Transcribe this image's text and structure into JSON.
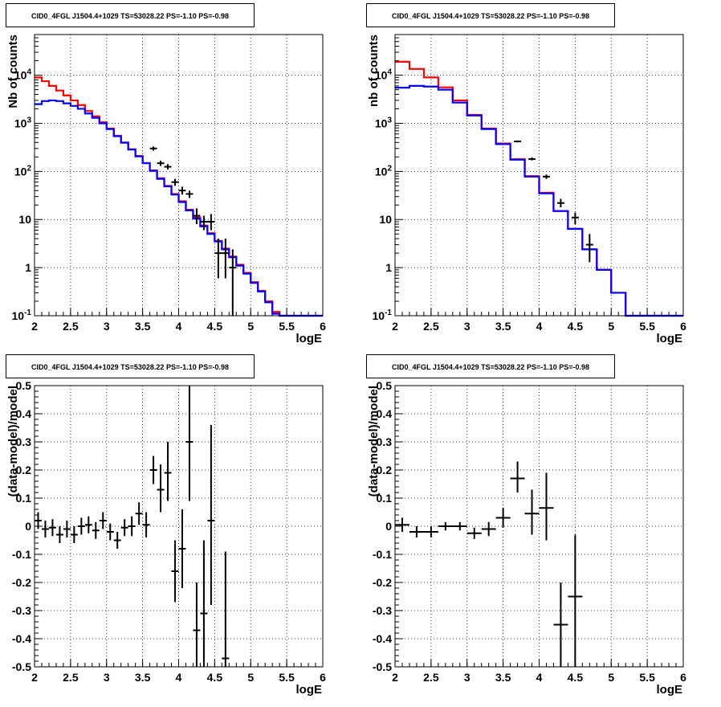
{
  "chart_data": [
    {
      "id": "top-left",
      "type": "histogram",
      "title": "CID0_4FGL J1504.4+1029 TS=53028.22 PS=-1.10 PS=-0.98",
      "xlabel": "logE",
      "ylabel": "Nb of counts",
      "xlim": [
        2,
        6
      ],
      "ylim": [
        0.1,
        70000
      ],
      "ylog": true,
      "grid": true,
      "xticks": [
        2,
        2.5,
        3,
        3.5,
        4,
        4.5,
        5,
        5.5,
        6
      ],
      "xtick_labels": [
        "2",
        "2.5",
        "3",
        "3.5",
        "4",
        "4.5",
        "5",
        "5.5",
        "6"
      ],
      "yticks": [
        0.1,
        1,
        10,
        100,
        1000,
        10000
      ],
      "ytick_labels": [
        "10^-1",
        "1",
        "10",
        "10^2",
        "10^3",
        "10^4"
      ],
      "bin_edges": [
        2.0,
        2.1,
        2.2,
        2.3,
        2.4,
        2.5,
        2.6,
        2.7,
        2.8,
        2.9,
        3.0,
        3.1,
        3.2,
        3.3,
        3.4,
        3.5,
        3.6,
        3.7,
        3.8,
        3.9,
        4.0,
        4.1,
        4.2,
        4.3,
        4.4,
        4.5,
        4.6,
        4.7,
        4.8,
        4.9,
        5.0,
        5.1,
        5.2,
        5.3,
        5.4,
        5.5,
        5.6,
        5.7,
        5.8,
        5.9,
        6.0
      ],
      "series": [
        {
          "color": "#ff0000",
          "values": [
            9000,
            7500,
            6000,
            4800,
            3800,
            3000,
            2400,
            1800,
            1400,
            1050,
            780,
            550,
            400,
            290,
            210,
            150,
            105,
            72,
            50,
            34,
            24,
            16,
            11,
            7.5,
            5.2,
            3.6,
            2.5,
            1.7,
            1.15,
            0.78,
            0.5,
            0.33,
            0.2,
            0.12,
            0.1,
            0.1,
            0.1,
            0.1,
            0.1,
            0.1
          ]
        },
        {
          "color": "#0000ff",
          "values": [
            2500,
            2900,
            3000,
            2900,
            2600,
            2300,
            2000,
            1600,
            1300,
            1000,
            760,
            540,
            395,
            285,
            205,
            148,
            103,
            70,
            49,
            33,
            23,
            15.5,
            10.5,
            7.2,
            5.0,
            3.5,
            2.4,
            1.65,
            1.1,
            0.75,
            0.48,
            0.32,
            0.19,
            0.11,
            0.1,
            0.1,
            0.1,
            0.1,
            0.1,
            0.1
          ]
        }
      ],
      "points": [
        {
          "x": 3.65,
          "y": 300,
          "ylo": 270,
          "yhi": 330
        },
        {
          "x": 3.75,
          "y": 148,
          "ylo": 130,
          "yhi": 168
        },
        {
          "x": 3.85,
          "y": 125,
          "ylo": 110,
          "yhi": 142
        },
        {
          "x": 3.95,
          "y": 60,
          "ylo": 50,
          "yhi": 70
        },
        {
          "x": 4.05,
          "y": 40,
          "ylo": 33,
          "yhi": 48
        },
        {
          "x": 4.15,
          "y": 34,
          "ylo": 28,
          "yhi": 40
        },
        {
          "x": 4.25,
          "y": 12,
          "ylo": 8,
          "yhi": 17
        },
        {
          "x": 4.35,
          "y": 9,
          "ylo": 6,
          "yhi": 12
        },
        {
          "x": 4.45,
          "y": 9,
          "ylo": 6,
          "yhi": 13
        },
        {
          "x": 4.55,
          "y": 2,
          "ylo": 0.6,
          "yhi": 4
        },
        {
          "x": 4.65,
          "y": 2,
          "ylo": 0.6,
          "yhi": 4
        },
        {
          "x": 4.75,
          "y": 1,
          "ylo": 0.1,
          "yhi": 2.4
        }
      ]
    },
    {
      "id": "top-right",
      "type": "histogram",
      "title": "CID0_4FGL J1504.4+1029 TS=53028.22 PS=-1.10 PS=-0.98",
      "xlabel": "logE",
      "ylabel": "nb of counts",
      "xlim": [
        2,
        6
      ],
      "ylim": [
        0.1,
        70000
      ],
      "ylog": true,
      "grid": true,
      "xticks": [
        2,
        2.5,
        3,
        3.5,
        4,
        4.5,
        5,
        5.5,
        6
      ],
      "xtick_labels": [
        "2",
        "2.5",
        "3",
        "3.5",
        "4",
        "4.5",
        "5",
        "5.5",
        "6"
      ],
      "yticks": [
        0.1,
        1,
        10,
        100,
        1000,
        10000
      ],
      "ytick_labels": [
        "10^-1",
        "1",
        "10",
        "10^2",
        "10^3",
        "10^4"
      ],
      "bin_edges": [
        2.0,
        2.2,
        2.4,
        2.6,
        2.8,
        3.0,
        3.2,
        3.4,
        3.6,
        3.8,
        4.0,
        4.2,
        4.4,
        4.6,
        4.8,
        5.0,
        5.2,
        5.4,
        5.6,
        5.8,
        6.0
      ],
      "series": [
        {
          "color": "#ff0000",
          "values": [
            19000,
            13500,
            9000,
            5600,
            3000,
            1500,
            780,
            380,
            180,
            80,
            36,
            15,
            6.4,
            2.4,
            0.9,
            0.3,
            0.1,
            0.1,
            0.1,
            0.1
          ]
        },
        {
          "color": "#0000ff",
          "values": [
            5500,
            6000,
            5800,
            5000,
            2700,
            1450,
            760,
            370,
            175,
            78,
            35,
            15,
            6.4,
            2.4,
            0.9,
            0.3,
            0.1,
            0.1,
            0.1,
            0.1
          ]
        }
      ],
      "points": [
        {
          "x": 3.7,
          "y": 420,
          "ylo": 400,
          "yhi": 440
        },
        {
          "x": 3.9,
          "y": 180,
          "ylo": 170,
          "yhi": 195
        },
        {
          "x": 4.1,
          "y": 78,
          "ylo": 70,
          "yhi": 86
        },
        {
          "x": 4.3,
          "y": 22,
          "ylo": 18,
          "yhi": 27
        },
        {
          "x": 4.5,
          "y": 11,
          "ylo": 8,
          "yhi": 14
        },
        {
          "x": 4.7,
          "y": 3,
          "ylo": 1.3,
          "yhi": 5
        }
      ]
    },
    {
      "id": "bottom-left",
      "type": "scatter",
      "title": "CID0_4FGL J1504.4+1029 TS=53028.22 PS=-1.10 PS=-0.98",
      "xlabel": "logE",
      "ylabel": "(data-model)/model",
      "xlim": [
        2,
        6
      ],
      "ylim": [
        -0.5,
        0.5
      ],
      "grid": true,
      "xticks": [
        2,
        2.5,
        3,
        3.5,
        4,
        4.5,
        5,
        5.5,
        6
      ],
      "xtick_labels": [
        "2",
        "2.5",
        "3",
        "3.5",
        "4",
        "4.5",
        "5",
        "5.5",
        "6"
      ],
      "yticks": [
        -0.5,
        -0.4,
        -0.3,
        -0.2,
        -0.1,
        0,
        0.1,
        0.2,
        0.3,
        0.4,
        0.5
      ],
      "ytick_labels": [
        "-0.5",
        "-0.4",
        "-0.3",
        "-0.2",
        "-0.1",
        "0",
        "0.1",
        "0.2",
        "0.3",
        "0.4",
        "0.5"
      ],
      "xerr": 0.05,
      "points": [
        {
          "x": 2.05,
          "y": 0.02,
          "ylo": -0.01,
          "yhi": 0.05
        },
        {
          "x": 2.15,
          "y": -0.01,
          "ylo": -0.04,
          "yhi": 0.02
        },
        {
          "x": 2.25,
          "y": -0.005,
          "ylo": -0.035,
          "yhi": 0.025
        },
        {
          "x": 2.35,
          "y": -0.03,
          "ylo": -0.06,
          "yhi": 0.0
        },
        {
          "x": 2.45,
          "y": -0.01,
          "ylo": -0.04,
          "yhi": 0.02
        },
        {
          "x": 2.55,
          "y": -0.03,
          "ylo": -0.06,
          "yhi": 0.0
        },
        {
          "x": 2.65,
          "y": 0.0,
          "ylo": -0.03,
          "yhi": 0.03
        },
        {
          "x": 2.75,
          "y": 0.005,
          "ylo": -0.025,
          "yhi": 0.035
        },
        {
          "x": 2.85,
          "y": -0.015,
          "ylo": -0.045,
          "yhi": 0.015
        },
        {
          "x": 2.95,
          "y": 0.02,
          "ylo": -0.01,
          "yhi": 0.05
        },
        {
          "x": 3.05,
          "y": -0.02,
          "ylo": -0.05,
          "yhi": 0.01
        },
        {
          "x": 3.15,
          "y": -0.05,
          "ylo": -0.08,
          "yhi": -0.02
        },
        {
          "x": 3.25,
          "y": -0.005,
          "ylo": -0.035,
          "yhi": 0.025
        },
        {
          "x": 3.35,
          "y": 0.0,
          "ylo": -0.035,
          "yhi": 0.035
        },
        {
          "x": 3.45,
          "y": 0.045,
          "ylo": 0.005,
          "yhi": 0.085
        },
        {
          "x": 3.55,
          "y": 0.005,
          "ylo": -0.04,
          "yhi": 0.05
        },
        {
          "x": 3.65,
          "y": 0.2,
          "ylo": 0.15,
          "yhi": 0.25
        },
        {
          "x": 3.75,
          "y": 0.13,
          "ylo": 0.05,
          "yhi": 0.22
        },
        {
          "x": 3.85,
          "y": 0.19,
          "ylo": 0.09,
          "yhi": 0.3
        },
        {
          "x": 3.95,
          "y": -0.16,
          "ylo": -0.27,
          "yhi": -0.05
        },
        {
          "x": 4.05,
          "y": -0.08,
          "ylo": -0.22,
          "yhi": 0.06
        },
        {
          "x": 4.15,
          "y": 0.3,
          "ylo": 0.09,
          "yhi": 0.5
        },
        {
          "x": 4.25,
          "y": -0.37,
          "ylo": -0.5,
          "yhi": -0.2
        },
        {
          "x": 4.35,
          "y": -0.31,
          "ylo": -0.5,
          "yhi": -0.05
        },
        {
          "x": 4.45,
          "y": 0.02,
          "ylo": -0.28,
          "yhi": 0.36
        },
        {
          "x": 4.65,
          "y": -0.47,
          "ylo": -0.5,
          "yhi": -0.09
        }
      ]
    },
    {
      "id": "bottom-right",
      "type": "scatter",
      "title": "CID0_4FGL J1504.4+1029 TS=53028.22 PS=-1.10 PS=-0.98",
      "xlabel": "logE",
      "ylabel": "(data-model)/model",
      "xlim": [
        2,
        6
      ],
      "ylim": [
        -0.5,
        0.5
      ],
      "grid": true,
      "xticks": [
        2,
        2.5,
        3,
        3.5,
        4,
        4.5,
        5,
        5.5,
        6
      ],
      "xtick_labels": [
        "2",
        "2.5",
        "3",
        "3.5",
        "4",
        "4.5",
        "5",
        "5.5",
        "6"
      ],
      "yticks": [
        -0.5,
        -0.4,
        -0.3,
        -0.2,
        -0.1,
        0,
        0.1,
        0.2,
        0.3,
        0.4,
        0.5
      ],
      "ytick_labels": [
        "-0.5",
        "-0.4",
        "-0.3",
        "-0.2",
        "-0.1",
        "0",
        "0.1",
        "0.2",
        "0.3",
        "0.4",
        "0.5"
      ],
      "xerr": 0.1,
      "points": [
        {
          "x": 2.1,
          "y": 0.005,
          "ylo": -0.02,
          "yhi": 0.03
        },
        {
          "x": 2.3,
          "y": -0.02,
          "ylo": -0.04,
          "yhi": 0.0
        },
        {
          "x": 2.5,
          "y": -0.02,
          "ylo": -0.04,
          "yhi": 0.0
        },
        {
          "x": 2.7,
          "y": 0.0,
          "ylo": -0.015,
          "yhi": 0.015
        },
        {
          "x": 2.9,
          "y": 0.0,
          "ylo": -0.015,
          "yhi": 0.015
        },
        {
          "x": 3.1,
          "y": -0.025,
          "ylo": -0.045,
          "yhi": -0.005
        },
        {
          "x": 3.3,
          "y": -0.01,
          "ylo": -0.035,
          "yhi": 0.015
        },
        {
          "x": 3.5,
          "y": 0.03,
          "ylo": -0.005,
          "yhi": 0.065
        },
        {
          "x": 3.7,
          "y": 0.17,
          "ylo": 0.12,
          "yhi": 0.23
        },
        {
          "x": 3.9,
          "y": 0.045,
          "ylo": -0.03,
          "yhi": 0.13
        },
        {
          "x": 4.1,
          "y": 0.065,
          "ylo": -0.05,
          "yhi": 0.19
        },
        {
          "x": 4.3,
          "y": -0.35,
          "ylo": -0.5,
          "yhi": -0.2
        },
        {
          "x": 4.5,
          "y": -0.25,
          "ylo": -0.5,
          "yhi": -0.03
        }
      ]
    }
  ]
}
